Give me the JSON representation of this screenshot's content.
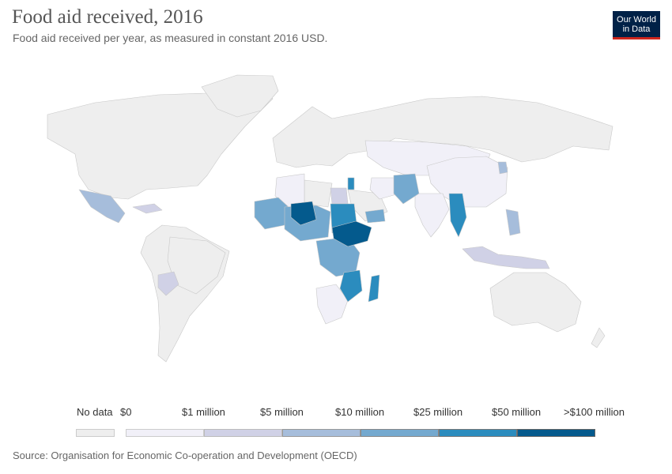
{
  "header": {
    "title": "Food aid received, 2016",
    "subtitle": "Food aid received per year, as measured in constant 2016 USD."
  },
  "logo": {
    "line1": "Our World",
    "line2": "in Data",
    "bg_color": "#002147",
    "accent_color": "#ce261e"
  },
  "legend": {
    "no_data_label": "No data",
    "no_data_color": "#eeeeee",
    "bins": [
      {
        "label": "$0",
        "color": "#f1f0f8"
      },
      {
        "label": "$1 million",
        "color": "#d0d1e6"
      },
      {
        "label": "$5 million",
        "color": "#a6bddb"
      },
      {
        "label": "$10 million",
        "color": "#74a9cf"
      },
      {
        "label": "$25 million",
        "color": "#2b8cbe"
      },
      {
        "label": "$50 million",
        "color": "#045a8d"
      },
      {
        "label": ">$100 million",
        "color": ""
      }
    ]
  },
  "footer": {
    "source": "Source: Organisation for Economic Co-operation and Development (OECD)"
  }
}
